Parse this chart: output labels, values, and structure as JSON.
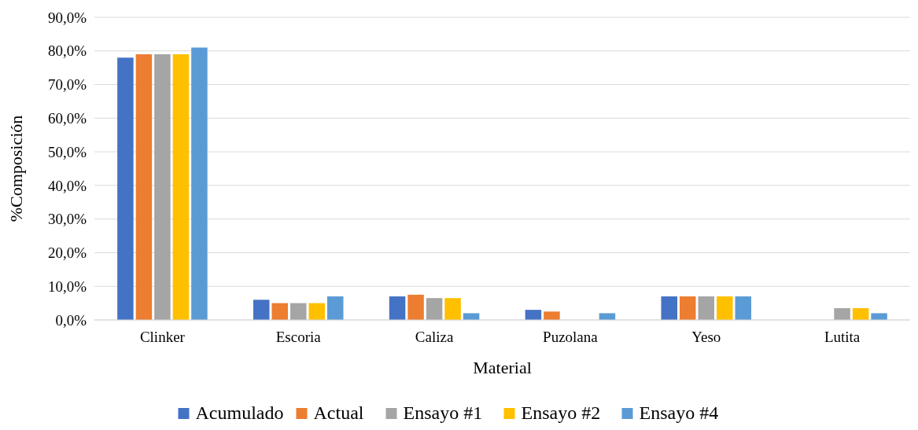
{
  "chart_data": {
    "type": "bar",
    "xlabel": "Material",
    "ylabel": "%Composición",
    "categories": [
      "Clinker",
      "Escoria",
      "Caliza",
      "Puzolana",
      "Yeso",
      "Lutita"
    ],
    "series": [
      {
        "name": "Acumulado",
        "color": "#4472c4",
        "values": [
          78,
          6,
          7,
          3,
          7,
          null
        ]
      },
      {
        "name": "Actual",
        "color": "#ed7d31",
        "values": [
          79,
          5,
          7.5,
          2.5,
          7,
          null
        ]
      },
      {
        "name": "Ensayo #1",
        "color": "#a5a5a5",
        "values": [
          79,
          5,
          6.5,
          null,
          7,
          3.5
        ]
      },
      {
        "name": "Ensayo #2",
        "color": "#ffc000",
        "values": [
          79,
          5,
          6.5,
          null,
          7,
          3.5
        ]
      },
      {
        "name": "Ensayo #4",
        "color": "#5b9bd5",
        "values": [
          81,
          7,
          2,
          2,
          7,
          2
        ]
      }
    ],
    "ylim": [
      0,
      90
    ],
    "yticks": [
      {
        "value": 0,
        "label": "0,0%"
      },
      {
        "value": 10,
        "label": "10,0%"
      },
      {
        "value": 20,
        "label": "20,0%"
      },
      {
        "value": 30,
        "label": "30,0%"
      },
      {
        "value": 40,
        "label": "40,0%"
      },
      {
        "value": 50,
        "label": "50,0%"
      },
      {
        "value": 60,
        "label": "60,0%"
      },
      {
        "value": 70,
        "label": "70,0%"
      },
      {
        "value": 80,
        "label": "80,0%"
      },
      {
        "value": 90,
        "label": "90,0%"
      }
    ],
    "grid": "y",
    "legend": "bottom"
  }
}
